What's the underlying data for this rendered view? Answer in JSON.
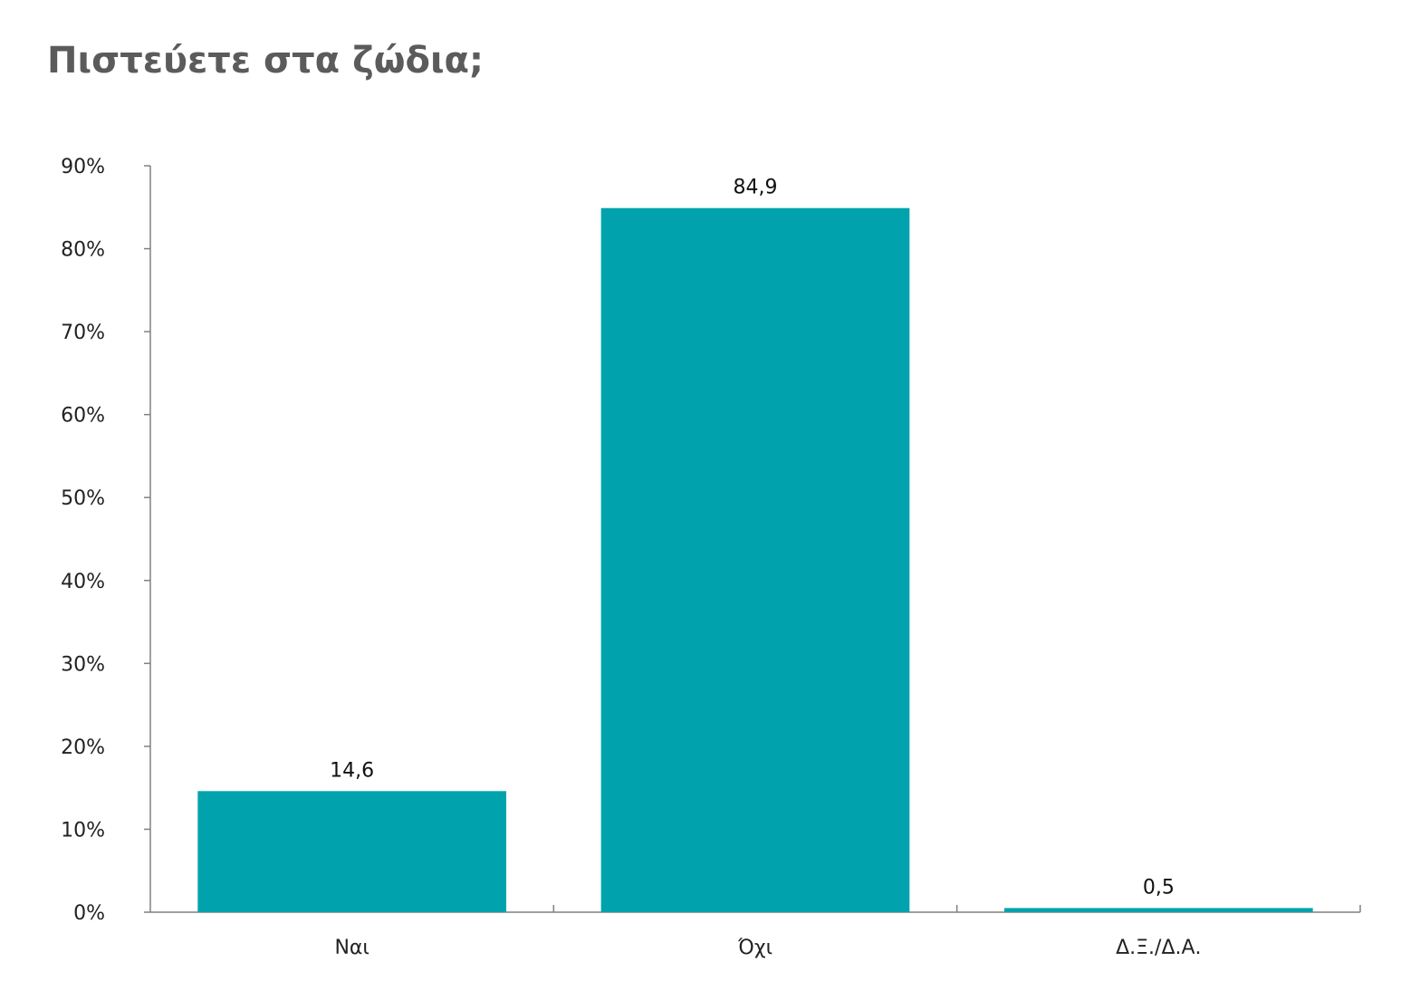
{
  "title": "Πιστεύετε στα ζώδια;",
  "colors": {
    "bar": "#00a3ad",
    "axis": "#808080",
    "title": "#5b5b5b"
  },
  "chart_data": {
    "type": "bar",
    "title": "Πιστεύετε στα ζώδια;",
    "categories": [
      "Ναι",
      "Όχι",
      "Δ.Ξ./Δ.Α."
    ],
    "values": [
      14.6,
      84.9,
      0.5
    ],
    "data_labels": [
      "14,6",
      "84,9",
      "0,5"
    ],
    "ylim": [
      0,
      90
    ],
    "yticks": [
      0,
      10,
      20,
      30,
      40,
      50,
      60,
      70,
      80,
      90
    ],
    "ytick_labels": [
      "0%",
      "10%",
      "20%",
      "30%",
      "40%",
      "50%",
      "60%",
      "70%",
      "80%",
      "90%"
    ],
    "xlabel": "",
    "ylabel": "",
    "grid": false,
    "legend": "none"
  }
}
